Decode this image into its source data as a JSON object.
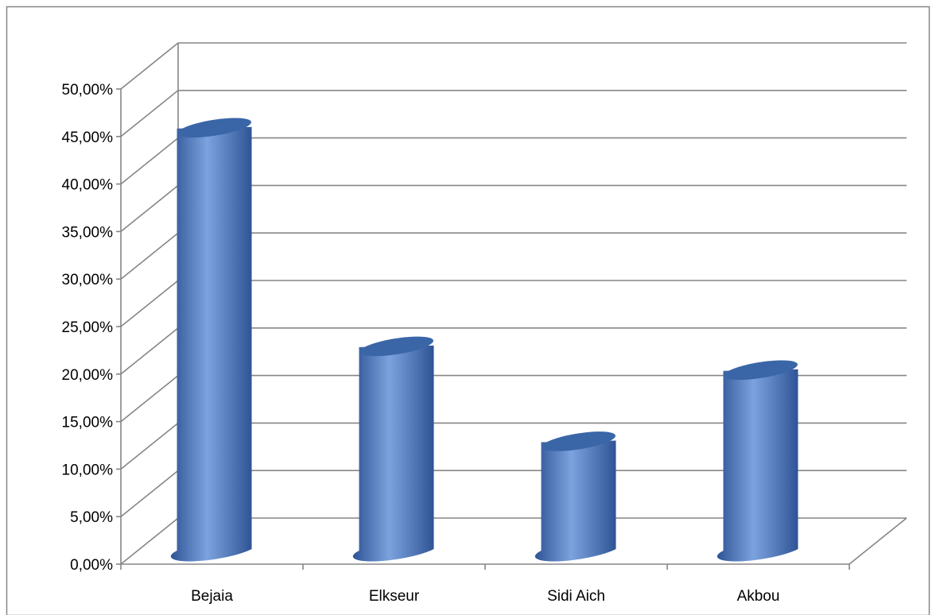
{
  "chart_data": {
    "type": "bar",
    "style": "3d-cylinder",
    "title": "",
    "xlabel": "",
    "ylabel": "",
    "categories": [
      "Bejaia",
      "Elkseur",
      "Sidi Aich",
      "Akbou"
    ],
    "series": [
      {
        "values": [
          0.45,
          0.22,
          0.12,
          0.195
        ]
      }
    ],
    "ylim": [
      0,
      0.5
    ],
    "y_tick_labels": [
      "0,00%",
      "5,00%",
      "10,00%",
      "15,00%",
      "20,00%",
      "25,00%",
      "30,00%",
      "35,00%",
      "40,00%",
      "45,00%",
      "50,00%"
    ],
    "grid": true,
    "legend": "none",
    "colors": {
      "bar_main": "#4F81BD",
      "bar_light": "#7CA3DE",
      "bar_dark": "#2F5496",
      "bar_top": "#3A66A8",
      "grid": "#868686",
      "border": "#868686"
    }
  }
}
